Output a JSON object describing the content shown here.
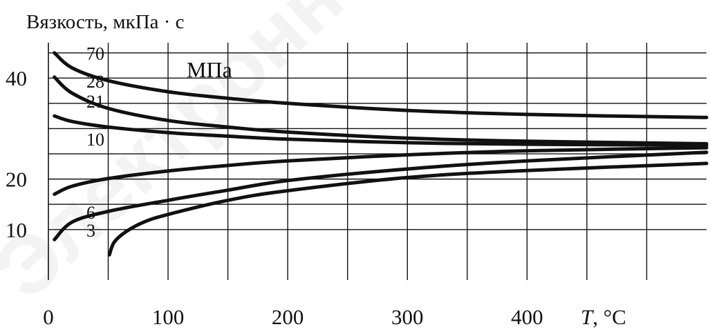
{
  "chart_data": {
    "type": "line",
    "ylabel": "Вязкость, мкПа · с",
    "xlabel_symbol": "T",
    "xlabel_unit": ", °C",
    "pressure_unit": "МПа",
    "xlim": [
      0,
      550
    ],
    "ylim": [
      0,
      47
    ],
    "x_ticks": [
      0,
      100,
      200,
      300,
      400
    ],
    "y_ticks": [
      10,
      20,
      40
    ],
    "grid": true,
    "series": [
      {
        "name": "70",
        "x": [
          5,
          20,
          50,
          100,
          150,
          200,
          300,
          400,
          550
        ],
        "y": [
          45,
          42,
          39.5,
          37.3,
          36,
          35,
          33.6,
          32.8,
          32.2
        ]
      },
      {
        "name": "28",
        "x": [
          5,
          20,
          50,
          100,
          150,
          200,
          300,
          400,
          550
        ],
        "y": [
          40.2,
          37,
          34,
          31.6,
          30.3,
          29.3,
          28.1,
          27.5,
          27
        ]
      },
      {
        "name": "21",
        "x": [
          5,
          20,
          50,
          100,
          150,
          200,
          300,
          400,
          550
        ],
        "y": [
          32.5,
          31.4,
          30.3,
          29.2,
          28.5,
          27.9,
          27.2,
          26.9,
          26.7
        ]
      },
      {
        "name": "10",
        "x": [
          5,
          20,
          50,
          100,
          150,
          200,
          300,
          400,
          550
        ],
        "y": [
          17,
          18.6,
          20.1,
          21.6,
          22.7,
          23.6,
          24.8,
          25.6,
          26.2
        ]
      },
      {
        "name": "6",
        "x": [
          5,
          20,
          50,
          100,
          150,
          200,
          300,
          400,
          550
        ],
        "y": [
          8,
          11.5,
          13.6,
          15.8,
          17.8,
          19.7,
          22,
          23.6,
          25.3
        ]
      },
      {
        "name": "3",
        "x": [
          51,
          55,
          65,
          80,
          100,
          150,
          200,
          300,
          400,
          550
        ],
        "y": [
          5,
          7.5,
          9.6,
          11.5,
          13,
          15.8,
          17.7,
          20.3,
          21.7,
          23.1
        ]
      }
    ],
    "curve_label_values": [
      45,
      39.5,
      35.5,
      28,
      13.5,
      10
    ]
  },
  "watermark": "Электронный архив"
}
